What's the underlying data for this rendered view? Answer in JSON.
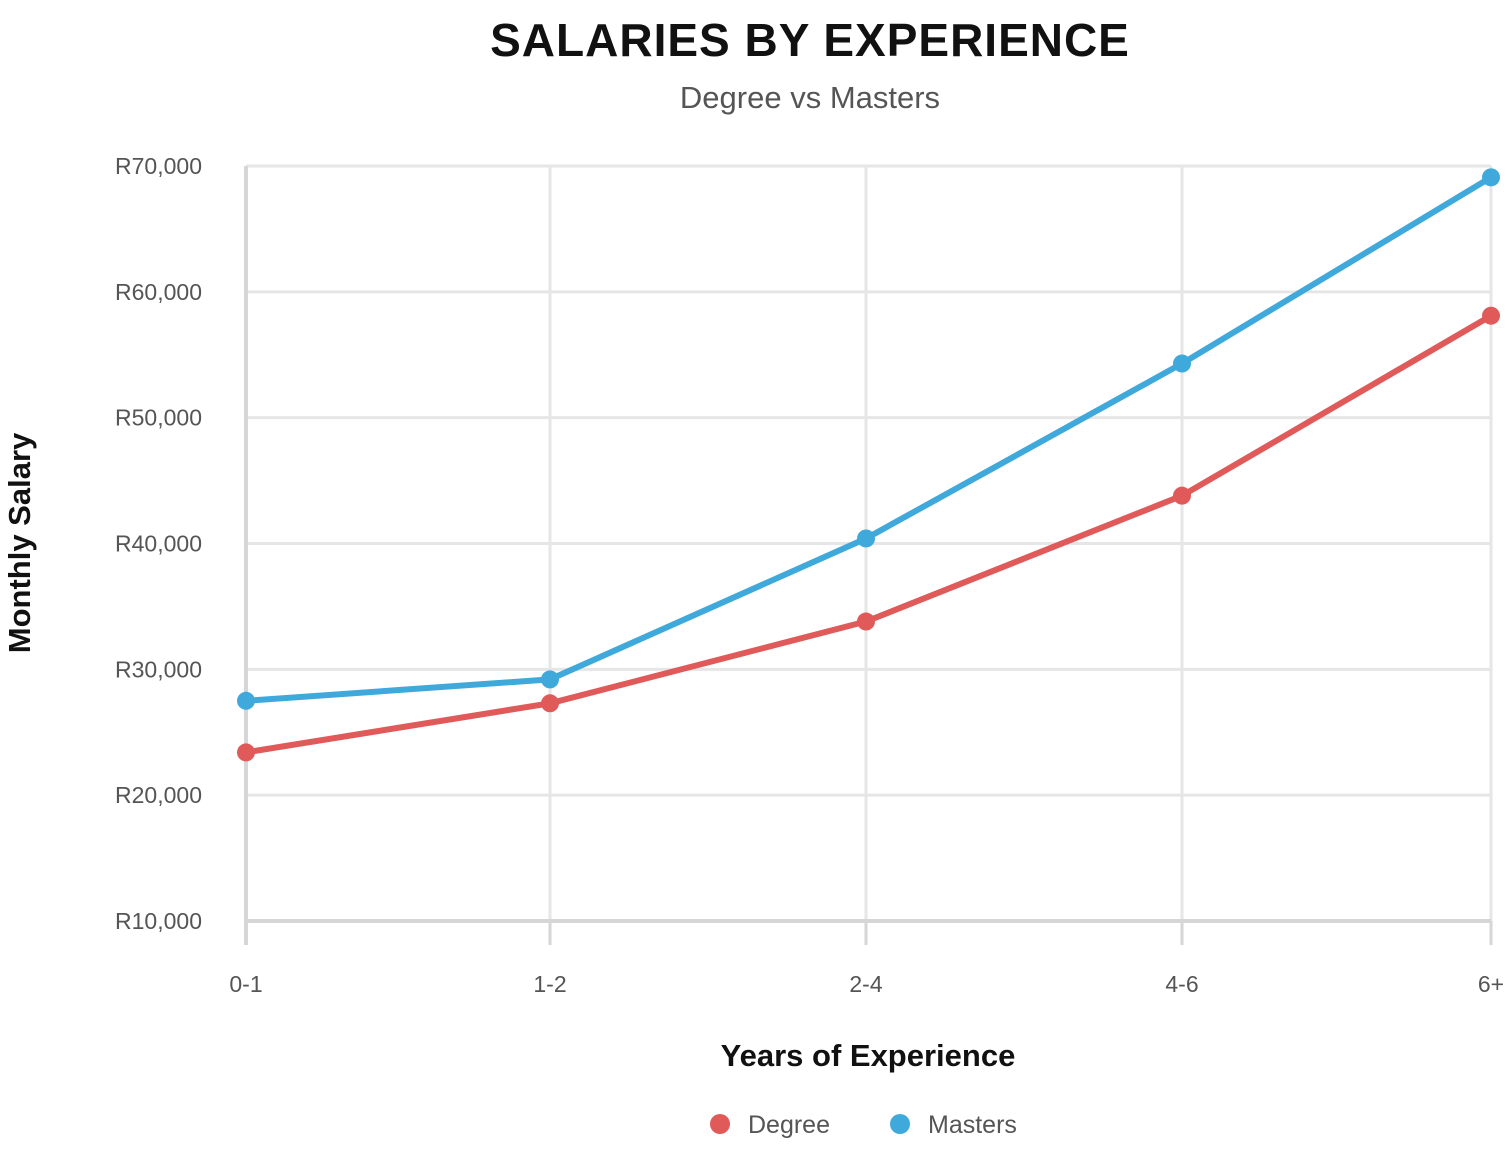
{
  "chart_data": {
    "type": "line",
    "title": "SALARIES BY EXPERIENCE",
    "subtitle": "Degree vs Masters",
    "xlabel": "Years of Experience",
    "ylabel": "Monthly Salary",
    "categories": [
      "0-1",
      "1-2",
      "2-4",
      "4-6",
      "6+"
    ],
    "ylim": [
      10000,
      70000
    ],
    "yticks": [
      10000,
      20000,
      30000,
      40000,
      50000,
      60000,
      70000
    ],
    "ytick_labels": [
      "R10,000",
      "R20,000",
      "R30,000",
      "R40,000",
      "R50,000",
      "R60,000",
      "R70,000"
    ],
    "grid": true,
    "legend_position": "bottom-center",
    "series": [
      {
        "name": "Degree",
        "color": "#e05a5a",
        "values": [
          23400,
          27300,
          33800,
          43800,
          58100
        ]
      },
      {
        "name": "Masters",
        "color": "#3fa9db",
        "values": [
          27500,
          29200,
          40400,
          54300,
          69100
        ]
      }
    ]
  }
}
